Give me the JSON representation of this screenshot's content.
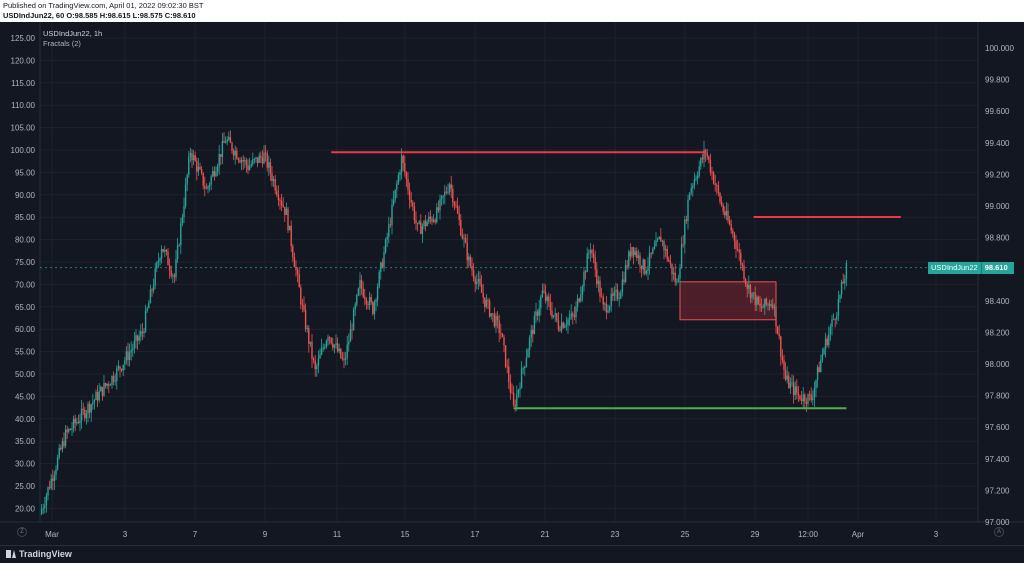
{
  "header": {
    "published": "Published on TradingView.com, April 01, 2022 09:02:30 BST",
    "ohlc": "USDIndJun22, 60 O:98.585 H:98.615 L:98.575 C:98.610"
  },
  "legend": {
    "symbol": "USDIndJun22, 1h",
    "indicator": "Fractals (2)"
  },
  "footer": {
    "brand": "TradingView",
    "left_button": "Z",
    "right_button": "A"
  },
  "price_tag": {
    "name": "USDIndJun22",
    "value": "98.610"
  },
  "colors": {
    "background": "#131722",
    "up": "#26a69a",
    "down": "#ef5350",
    "resistance": "#f23645",
    "support": "#4caf50",
    "zone_fill": "#7a2530"
  },
  "chart_data": {
    "type": "candlestick",
    "left_axis": {
      "ticks": [
        125,
        120,
        115,
        110,
        105,
        100,
        95,
        90,
        85,
        80,
        75,
        70,
        65,
        60,
        55,
        50,
        45,
        40,
        35,
        30,
        25,
        20
      ],
      "labels": [
        "125.00",
        "120.00",
        "115.00",
        "110.00",
        "105.00",
        "100.00",
        "95.00",
        "90.00",
        "85.00",
        "80.00",
        "75.00",
        "70.00",
        "65.00",
        "60.00",
        "55.00",
        "50.00",
        "45.00",
        "40.00",
        "35.00",
        "30.00",
        "25.00",
        "20.00"
      ]
    },
    "right_axis": {
      "ticks": [
        100.0,
        99.8,
        99.6,
        99.4,
        99.2,
        99.0,
        98.8,
        98.6,
        98.4,
        98.2,
        98.0,
        97.8,
        97.6,
        97.4,
        97.2,
        97.0
      ],
      "labels": [
        "100.000",
        "99.800",
        "99.600",
        "99.400",
        "99.200",
        "99.000",
        "98.800",
        "98.600",
        "98.400",
        "98.200",
        "98.000",
        "97.800",
        "97.600",
        "97.400",
        "97.200",
        "97.000"
      ]
    },
    "x_ticks": [
      "Mar",
      "3",
      "7",
      "9",
      "11",
      "15",
      "17",
      "21",
      "23",
      "25",
      "29",
      "12:00",
      "Apr",
      "3"
    ],
    "current_price": 98.61,
    "path": [
      [
        0,
        97.05
      ],
      [
        8,
        97.55
      ],
      [
        16,
        97.75
      ],
      [
        24,
        97.95
      ],
      [
        32,
        98.2
      ],
      [
        38,
        98.75
      ],
      [
        42,
        98.55
      ],
      [
        47,
        99.35
      ],
      [
        52,
        99.1
      ],
      [
        58,
        99.42
      ],
      [
        65,
        99.25
      ],
      [
        70,
        99.32
      ],
      [
        77,
        98.95
      ],
      [
        82,
        98.35
      ],
      [
        86,
        97.95
      ],
      [
        90,
        98.2
      ],
      [
        95,
        98.0
      ],
      [
        100,
        98.5
      ],
      [
        104,
        98.35
      ],
      [
        108,
        98.75
      ],
      [
        113,
        99.3
      ],
      [
        118,
        98.85
      ],
      [
        124,
        98.95
      ],
      [
        128,
        99.15
      ],
      [
        134,
        98.65
      ],
      [
        139,
        98.4
      ],
      [
        144,
        98.2
      ],
      [
        148,
        97.72
      ],
      [
        153,
        98.15
      ],
      [
        157,
        98.45
      ],
      [
        162,
        98.25
      ],
      [
        167,
        98.3
      ],
      [
        172,
        98.75
      ],
      [
        176,
        98.35
      ],
      [
        181,
        98.45
      ],
      [
        185,
        98.75
      ],
      [
        189,
        98.6
      ],
      [
        194,
        98.8
      ],
      [
        199,
        98.5
      ],
      [
        203,
        99.1
      ],
      [
        208,
        99.35
      ],
      [
        213,
        99.0
      ],
      [
        217,
        98.8
      ],
      [
        221,
        98.5
      ],
      [
        225,
        98.35
      ],
      [
        229,
        98.4
      ],
      [
        233,
        97.9
      ],
      [
        237,
        97.8
      ],
      [
        241,
        97.78
      ],
      [
        245,
        98.1
      ],
      [
        249,
        98.35
      ],
      [
        252,
        98.6
      ]
    ],
    "overlays": {
      "resistance_upper": {
        "from_x": 91,
        "to_x": 208,
        "y": 99.34
      },
      "resistance_lower": {
        "from_x": 223,
        "to_x": 269,
        "y": 98.93
      },
      "support": {
        "from_x": 148,
        "to_x": 252,
        "y": 97.72
      },
      "zone": {
        "from_x": 200,
        "to_x": 230,
        "y_top": 98.52,
        "y_bottom": 98.28
      }
    }
  }
}
